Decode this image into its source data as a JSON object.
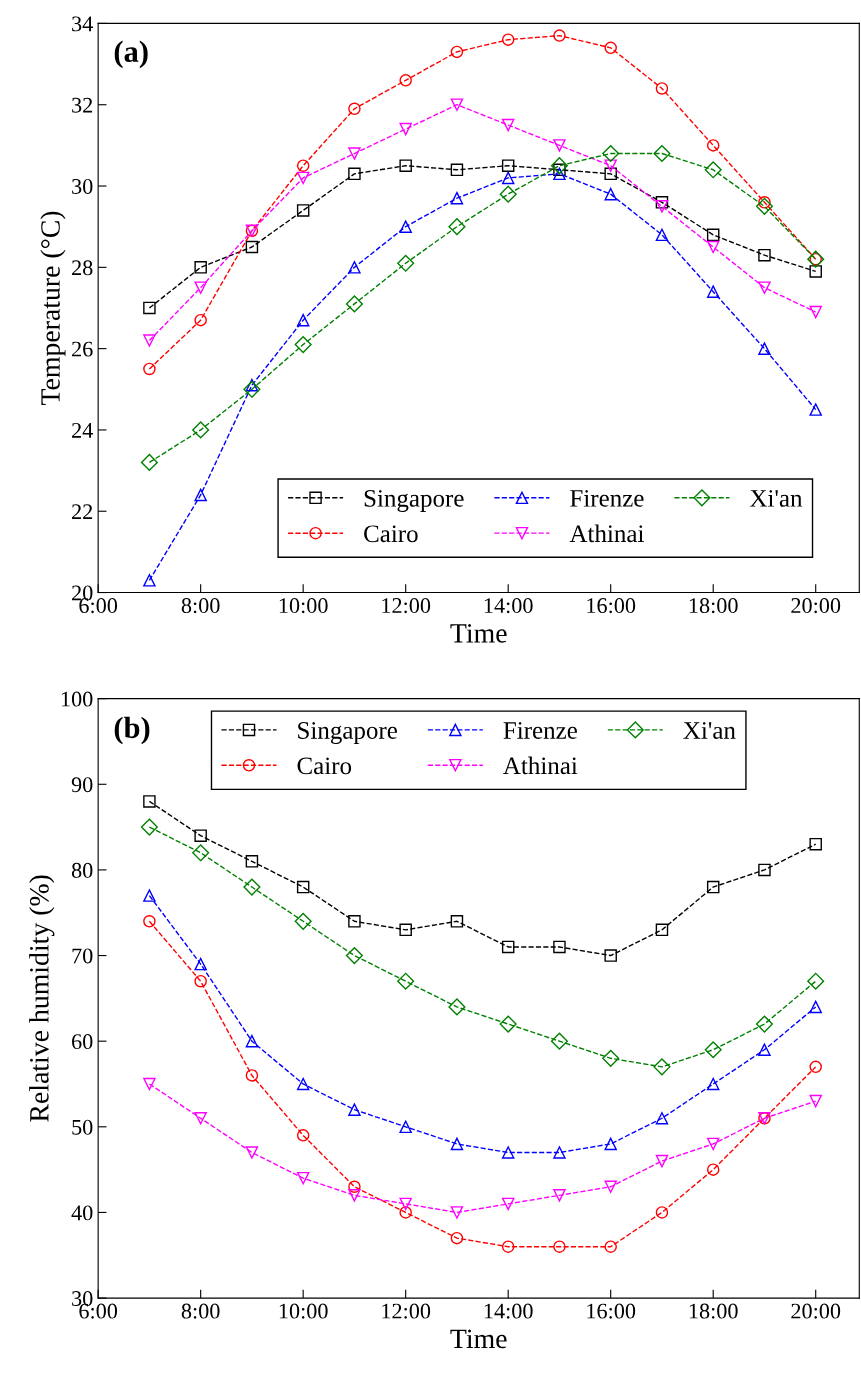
{
  "chart_data": [
    {
      "type": "line",
      "annotations": [
        "(a)"
      ],
      "xlabel": "Time",
      "ylabel": "Temperature (°C)",
      "x": [
        7,
        8,
        9,
        10,
        11,
        12,
        13,
        14,
        15,
        16,
        17,
        18,
        19,
        20
      ],
      "xlim": [
        6,
        20.85
      ],
      "xticks": [
        {
          "value": 6,
          "label": "6:00"
        },
        {
          "value": 8,
          "label": "8:00"
        },
        {
          "value": 10,
          "label": "10:00"
        },
        {
          "value": 12,
          "label": "12:00"
        },
        {
          "value": 14,
          "label": "14:00"
        },
        {
          "value": 16,
          "label": "16:00"
        },
        {
          "value": 18,
          "label": "18:00"
        },
        {
          "value": 20,
          "label": "20:00"
        }
      ],
      "ylim": [
        20,
        34
      ],
      "yticks": [
        20,
        22,
        24,
        26,
        28,
        30,
        32,
        34
      ],
      "legend": "bottom right",
      "line_style": "dashed",
      "grid": false,
      "series": [
        {
          "name": "Singapore",
          "color": "#000000",
          "marker": "square",
          "values": [
            27.0,
            28.0,
            28.5,
            29.4,
            30.3,
            30.5,
            30.4,
            30.5,
            30.4,
            30.3,
            29.6,
            28.8,
            28.3,
            27.9
          ]
        },
        {
          "name": "Cairo",
          "color": "#ff0000",
          "marker": "circle",
          "values": [
            25.5,
            26.7,
            28.9,
            30.5,
            31.9,
            32.6,
            33.3,
            33.6,
            33.7,
            33.4,
            32.4,
            31.0,
            29.6,
            28.2
          ]
        },
        {
          "name": "Firenze",
          "color": "#0000ff",
          "marker": "triangle",
          "values": [
            20.3,
            22.4,
            25.1,
            26.7,
            28.0,
            29.0,
            29.7,
            30.2,
            30.3,
            29.8,
            28.8,
            27.4,
            26.0,
            24.5
          ]
        },
        {
          "name": "Athinai",
          "color": "#ff00ff",
          "marker": "triangle_down",
          "values": [
            26.2,
            27.5,
            28.9,
            30.2,
            30.8,
            31.4,
            32.0,
            31.5,
            31.0,
            30.5,
            29.5,
            28.5,
            27.5,
            26.9
          ]
        },
        {
          "name": "Xi'an",
          "color": "#008000",
          "marker": "diamond",
          "values": [
            23.2,
            24.0,
            25.0,
            26.1,
            27.1,
            28.1,
            29.0,
            29.8,
            30.5,
            30.8,
            30.8,
            30.4,
            29.5,
            28.2
          ]
        }
      ]
    },
    {
      "type": "line",
      "annotations": [
        "(b)"
      ],
      "xlabel": "Time",
      "ylabel": "Relative humidity (%)",
      "x": [
        7,
        8,
        9,
        10,
        11,
        12,
        13,
        14,
        15,
        16,
        17,
        18,
        19,
        20
      ],
      "xlim": [
        6,
        20.85
      ],
      "xticks": [
        {
          "value": 6,
          "label": "6:00"
        },
        {
          "value": 8,
          "label": "8:00"
        },
        {
          "value": 10,
          "label": "10:00"
        },
        {
          "value": 12,
          "label": "12:00"
        },
        {
          "value": 14,
          "label": "14:00"
        },
        {
          "value": 16,
          "label": "16:00"
        },
        {
          "value": 18,
          "label": "18:00"
        },
        {
          "value": 20,
          "label": "20:00"
        }
      ],
      "ylim": [
        30,
        100
      ],
      "yticks": [
        30,
        40,
        50,
        60,
        70,
        80,
        90,
        100
      ],
      "legend": "top",
      "line_style": "dashed",
      "grid": false,
      "series": [
        {
          "name": "Singapore",
          "color": "#000000",
          "marker": "square",
          "values": [
            88,
            84,
            81,
            78,
            74,
            73,
            74,
            71,
            71,
            70,
            73,
            78,
            80,
            83
          ]
        },
        {
          "name": "Cairo",
          "color": "#ff0000",
          "marker": "circle",
          "values": [
            74,
            67,
            56,
            49,
            43,
            40,
            37,
            36,
            36,
            36,
            40,
            45,
            51,
            57
          ]
        },
        {
          "name": "Firenze",
          "color": "#0000ff",
          "marker": "triangle",
          "values": [
            77,
            69,
            60,
            55,
            52,
            50,
            48,
            47,
            47,
            48,
            51,
            55,
            59,
            64
          ]
        },
        {
          "name": "Athinai",
          "color": "#ff00ff",
          "marker": "triangle_down",
          "values": [
            55,
            51,
            47,
            44,
            42,
            41,
            40,
            41,
            42,
            43,
            46,
            48,
            51,
            53
          ]
        },
        {
          "name": "Xi'an",
          "color": "#008000",
          "marker": "diamond",
          "values": [
            85,
            82,
            78,
            74,
            70,
            67,
            64,
            62,
            60,
            58,
            57,
            59,
            62,
            67
          ]
        }
      ]
    }
  ]
}
